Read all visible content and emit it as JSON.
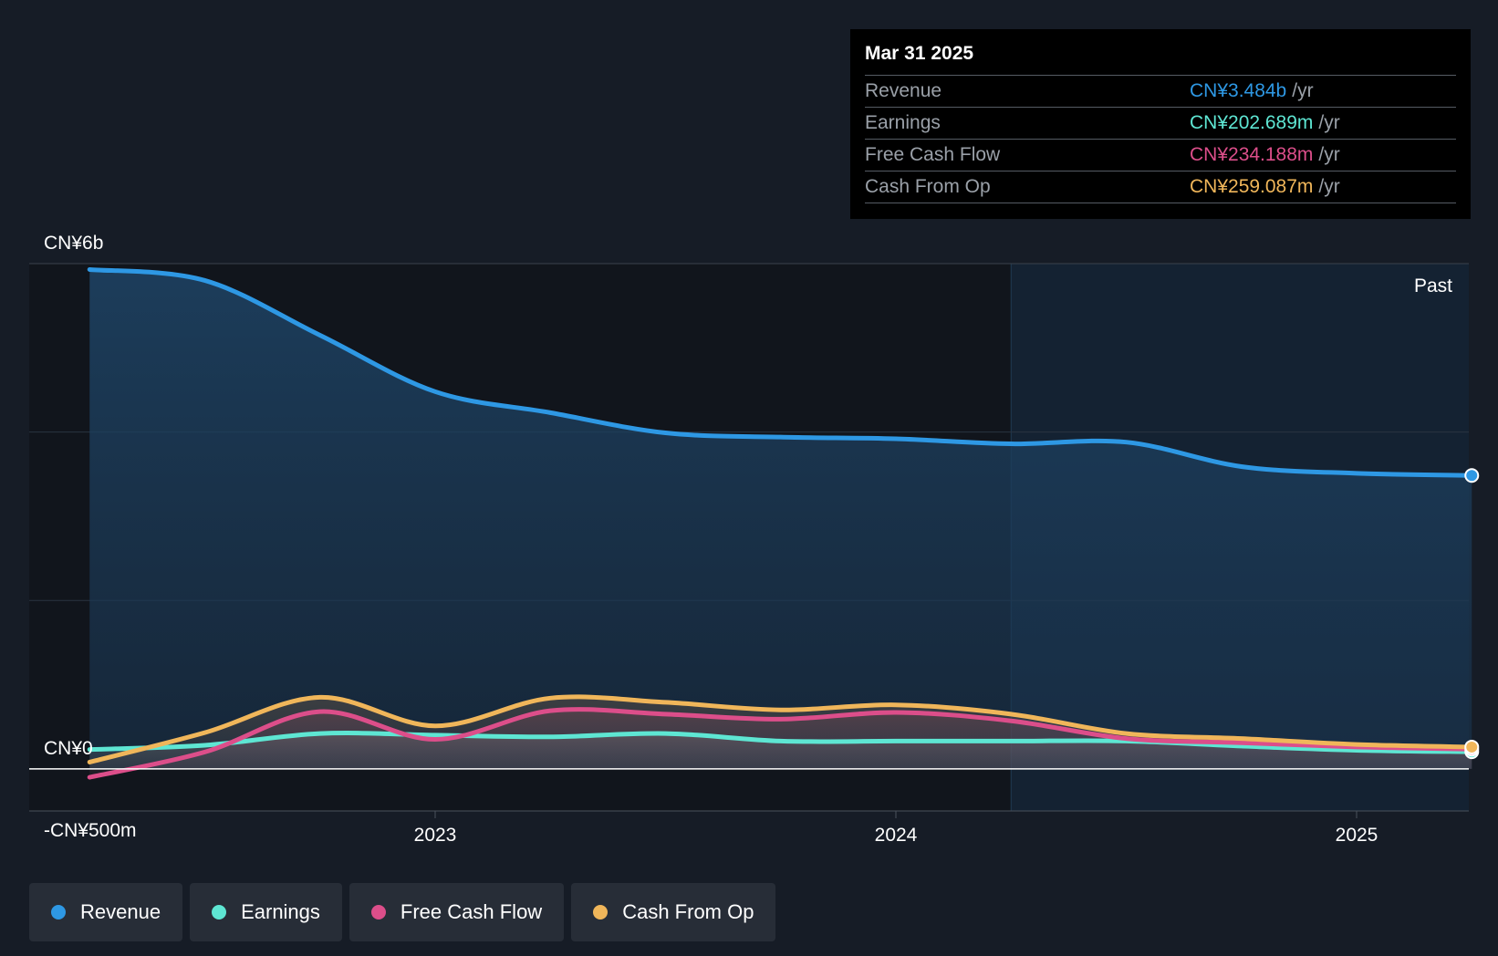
{
  "tooltip": {
    "date": "Mar 31 2025",
    "rows": [
      {
        "label": "Revenue",
        "value": "CN¥3.484b",
        "unit": "/yr",
        "color": "#2e98e4"
      },
      {
        "label": "Earnings",
        "value": "CN¥202.689m",
        "unit": "/yr",
        "color": "#5ee6d3"
      },
      {
        "label": "Free Cash Flow",
        "value": "CN¥234.188m",
        "unit": "/yr",
        "color": "#dc4e8a"
      },
      {
        "label": "Cash From Op",
        "value": "CN¥259.087m",
        "unit": "/yr",
        "color": "#f0b65a"
      }
    ]
  },
  "legend": [
    {
      "label": "Revenue",
      "color": "#2e98e4"
    },
    {
      "label": "Earnings",
      "color": "#5ee6d3"
    },
    {
      "label": "Free Cash Flow",
      "color": "#dc4e8a"
    },
    {
      "label": "Cash From Op",
      "color": "#f0b65a"
    }
  ],
  "chart_data": {
    "type": "line",
    "region_label": "Past",
    "y_tick_labels": [
      {
        "value": 6000,
        "label": "CN¥6b"
      },
      {
        "value": 0,
        "label": "CN¥0"
      },
      {
        "value": -500,
        "label": "-CN¥500m"
      }
    ],
    "x_tick_labels": [
      {
        "value": 2023.0,
        "label": "2023"
      },
      {
        "value": 2024.0,
        "label": "2024"
      },
      {
        "value": 2025.0,
        "label": "2025"
      }
    ],
    "xlim": [
      2021.3,
      2025.25
    ],
    "ylim": [
      -500,
      6000
    ],
    "gridlines_y": [
      2000,
      4000
    ],
    "grid": true,
    "past_start_x": 2024.25,
    "series": [
      {
        "name": "Revenue",
        "color": "#2e98e4",
        "x": [
          2022.25,
          2022.5,
          2022.75,
          2023.0,
          2023.25,
          2023.5,
          2023.75,
          2024.0,
          2024.25,
          2024.5,
          2024.75,
          2025.0,
          2025.25
        ],
        "y": [
          5930,
          5800,
          5150,
          4480,
          4230,
          3990,
          3940,
          3920,
          3860,
          3880,
          3590,
          3510,
          3484
        ]
      },
      {
        "name": "Earnings",
        "color": "#5ee6d3",
        "x": [
          2022.25,
          2022.5,
          2022.75,
          2023.0,
          2023.25,
          2023.5,
          2023.75,
          2024.0,
          2024.25,
          2024.5,
          2024.75,
          2025.0,
          2025.25
        ],
        "y": [
          230,
          280,
          420,
          400,
          380,
          420,
          330,
          330,
          330,
          330,
          270,
          220,
          203
        ]
      },
      {
        "name": "Free Cash Flow",
        "color": "#dc4e8a",
        "x": [
          2022.25,
          2022.5,
          2022.75,
          2023.0,
          2023.25,
          2023.5,
          2023.75,
          2024.0,
          2024.25,
          2024.5,
          2024.75,
          2025.0,
          2025.25
        ],
        "y": [
          -100,
          200,
          680,
          350,
          690,
          650,
          590,
          670,
          570,
          360,
          310,
          260,
          234
        ]
      },
      {
        "name": "Cash From Op",
        "color": "#f0b65a",
        "x": [
          2022.25,
          2022.5,
          2022.75,
          2023.0,
          2023.25,
          2023.5,
          2023.75,
          2024.0,
          2024.25,
          2024.5,
          2024.75,
          2025.0,
          2025.25
        ],
        "y": [
          80,
          430,
          850,
          510,
          840,
          790,
          700,
          760,
          650,
          420,
          360,
          290,
          259
        ]
      }
    ]
  }
}
